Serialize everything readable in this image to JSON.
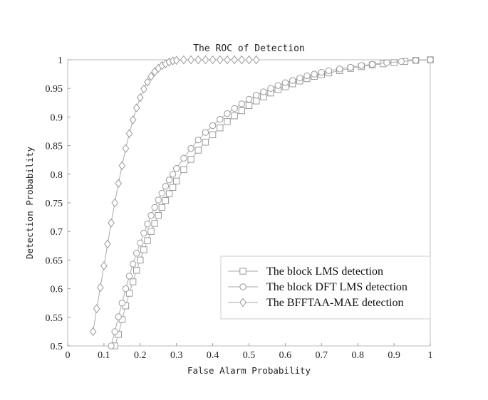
{
  "chart_data": {
    "type": "line",
    "title": "The ROC of Detection",
    "xlabel": "False Alarm Probability",
    "ylabel": "Detection Probability",
    "xlim": [
      0,
      1
    ],
    "ylim": [
      0.5,
      1
    ],
    "xticks": [
      "0",
      "0.1",
      "0.2",
      "0.3",
      "0.4",
      "0.5",
      "0.6",
      "0.7",
      "0.8",
      "0.9",
      "1"
    ],
    "yticks": [
      "0.5",
      "0.55",
      "0.6",
      "0.65",
      "0.7",
      "0.75",
      "0.8",
      "0.85",
      "0.9",
      "0.95",
      "1"
    ],
    "grid": false,
    "legend_position": "bottom-right",
    "series": [
      {
        "name": "The block LMS detection",
        "marker": "square",
        "line_color": "#aaaaaa",
        "marker_color": "#999999",
        "x": [
          0.13,
          0.14,
          0.15,
          0.16,
          0.17,
          0.18,
          0.19,
          0.2,
          0.21,
          0.22,
          0.23,
          0.24,
          0.25,
          0.26,
          0.27,
          0.28,
          0.29,
          0.3,
          0.32,
          0.34,
          0.36,
          0.38,
          0.4,
          0.42,
          0.44,
          0.46,
          0.48,
          0.5,
          0.52,
          0.54,
          0.56,
          0.58,
          0.6,
          0.62,
          0.64,
          0.66,
          0.68,
          0.7,
          0.72,
          0.75,
          0.78,
          0.81,
          0.84,
          0.87,
          0.9,
          0.93,
          0.96,
          1.0
        ],
        "y": [
          0.5,
          0.52,
          0.546,
          0.57,
          0.592,
          0.612,
          0.632,
          0.65,
          0.668,
          0.684,
          0.7,
          0.714,
          0.728,
          0.742,
          0.754,
          0.766,
          0.777,
          0.788,
          0.808,
          0.826,
          0.842,
          0.856,
          0.869,
          0.881,
          0.892,
          0.902,
          0.911,
          0.92,
          0.928,
          0.935,
          0.942,
          0.948,
          0.953,
          0.958,
          0.963,
          0.967,
          0.971,
          0.974,
          0.977,
          0.981,
          0.985,
          0.988,
          0.991,
          0.993,
          0.995,
          0.997,
          0.999,
          1.0
        ]
      },
      {
        "name": "The block DFT LMS detection",
        "marker": "circle",
        "line_color": "#aaaaaa",
        "marker_color": "#999999",
        "x": [
          0.12,
          0.13,
          0.14,
          0.15,
          0.16,
          0.17,
          0.18,
          0.19,
          0.2,
          0.21,
          0.22,
          0.23,
          0.24,
          0.25,
          0.26,
          0.27,
          0.28,
          0.29,
          0.3,
          0.32,
          0.34,
          0.36,
          0.38,
          0.4,
          0.42,
          0.44,
          0.46,
          0.48,
          0.5,
          0.52,
          0.54,
          0.56,
          0.58,
          0.6,
          0.62,
          0.64,
          0.66,
          0.68,
          0.7,
          0.72,
          0.75,
          0.78,
          0.81,
          0.84,
          0.88,
          0.92,
          0.96,
          1.0
        ],
        "y": [
          0.5,
          0.525,
          0.551,
          0.575,
          0.6,
          0.622,
          0.643,
          0.662,
          0.68,
          0.697,
          0.713,
          0.728,
          0.742,
          0.755,
          0.767,
          0.779,
          0.79,
          0.8,
          0.81,
          0.828,
          0.845,
          0.86,
          0.873,
          0.885,
          0.896,
          0.906,
          0.915,
          0.923,
          0.931,
          0.938,
          0.944,
          0.95,
          0.955,
          0.96,
          0.964,
          0.968,
          0.972,
          0.975,
          0.978,
          0.981,
          0.984,
          0.987,
          0.99,
          0.992,
          0.995,
          0.997,
          0.999,
          1.0
        ]
      },
      {
        "name": "The BFFTAA-MAE detection",
        "marker": "diamond",
        "line_color": "#aaaaaa",
        "marker_color": "#999999",
        "x": [
          0.07,
          0.08,
          0.09,
          0.1,
          0.11,
          0.12,
          0.13,
          0.14,
          0.15,
          0.16,
          0.17,
          0.18,
          0.19,
          0.2,
          0.21,
          0.22,
          0.23,
          0.24,
          0.25,
          0.26,
          0.27,
          0.28,
          0.29,
          0.3,
          0.32,
          0.34,
          0.36,
          0.38,
          0.4,
          0.42,
          0.44,
          0.46,
          0.48,
          0.5,
          0.52
        ],
        "y": [
          0.525,
          0.565,
          0.602,
          0.64,
          0.678,
          0.715,
          0.75,
          0.784,
          0.815,
          0.845,
          0.871,
          0.895,
          0.916,
          0.934,
          0.949,
          0.961,
          0.971,
          0.979,
          0.985,
          0.99,
          0.993,
          0.996,
          0.998,
          0.999,
          1.0,
          1.0,
          1.0,
          1.0,
          1.0,
          1.0,
          1.0,
          1.0,
          1.0,
          1.0,
          1.0
        ]
      }
    ]
  }
}
